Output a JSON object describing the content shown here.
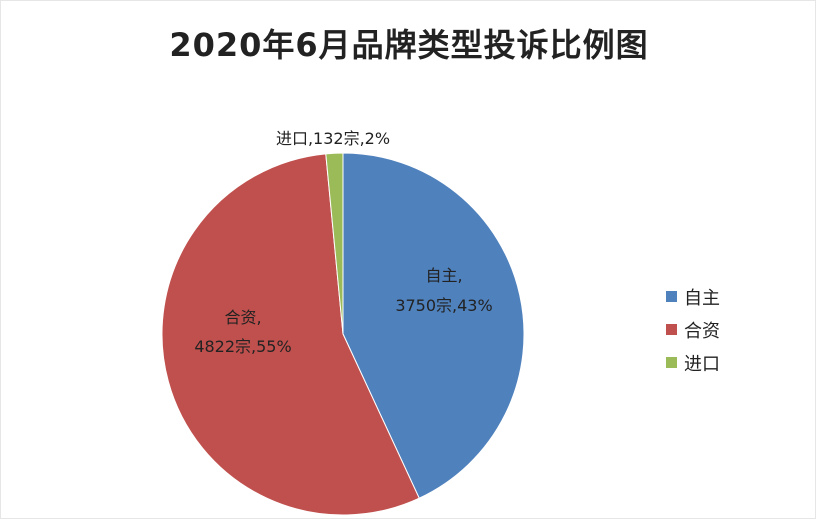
{
  "chart_data": {
    "type": "pie",
    "title": "2020年6月品牌类型投诉比例图",
    "slices": [
      {
        "name": "自主",
        "value": 3750,
        "percent": "43%",
        "color": "#4F81BD",
        "label_line1": "自主,",
        "label_line2": "3750宗,43%"
      },
      {
        "name": "合资",
        "value": 4822,
        "percent": "55%",
        "color": "#C0504D",
        "label_line1": "合资,",
        "label_line2": "4822宗,55%"
      },
      {
        "name": "进口",
        "value": 132,
        "percent": "2%",
        "color": "#9BBB59",
        "label_line1": "进口,132宗,2%",
        "label_line2": ""
      }
    ],
    "legend": [
      "自主",
      "合资",
      "进口"
    ],
    "legend_position": "right"
  }
}
